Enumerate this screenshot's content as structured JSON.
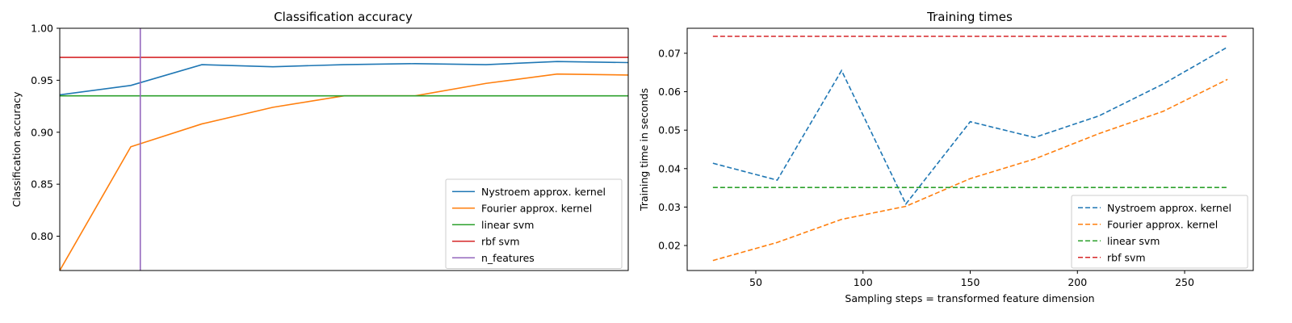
{
  "chart_data": [
    {
      "type": "line",
      "title": "Classification accuracy",
      "xlabel": "",
      "ylabel": "Classification accuracy",
      "xlim": [
        30,
        270
      ],
      "ylim": [
        0.767,
        1.0
      ],
      "yticks": [
        0.8,
        0.85,
        0.9,
        0.95,
        1.0
      ],
      "ytick_labels": [
        "0.80",
        "0.85",
        "0.90",
        "0.95",
        "1.00"
      ],
      "x": [
        30,
        60,
        90,
        120,
        150,
        180,
        210,
        240,
        270
      ],
      "series": [
        {
          "name": "Nystroem approx. kernel",
          "color": "#1f77b4",
          "style": "solid",
          "values": [
            0.936,
            0.945,
            0.965,
            0.963,
            0.965,
            0.966,
            0.965,
            0.968,
            0.967
          ]
        },
        {
          "name": "Fourier approx. kernel",
          "color": "#ff7f0e",
          "style": "solid",
          "values": [
            0.767,
            0.886,
            0.908,
            0.924,
            0.935,
            0.935,
            0.947,
            0.956,
            0.955
          ]
        },
        {
          "name": "linear svm",
          "color": "#2ca02c",
          "style": "solid",
          "hline": 0.935
        },
        {
          "name": "rbf svm",
          "color": "#d62728",
          "style": "solid",
          "hline": 0.972
        },
        {
          "name": "n_features",
          "color": "#9467bd",
          "style": "solid",
          "vline": 64
        }
      ],
      "legend_loc": "lower-right"
    },
    {
      "type": "line",
      "title": "Training times",
      "xlabel": "Sampling steps = transformed feature dimension",
      "ylabel": "Training time in seconds",
      "xlim": [
        18,
        282
      ],
      "ylim": [
        0.0135,
        0.0765
      ],
      "xticks": [
        50,
        100,
        150,
        200,
        250
      ],
      "xtick_labels": [
        "50",
        "100",
        "150",
        "200",
        "250"
      ],
      "yticks": [
        0.02,
        0.03,
        0.04,
        0.05,
        0.06,
        0.07
      ],
      "ytick_labels": [
        "0.02",
        "0.03",
        "0.04",
        "0.05",
        "0.06",
        "0.07"
      ],
      "x": [
        30,
        60,
        90,
        120,
        150,
        180,
        210,
        240,
        270
      ],
      "series": [
        {
          "name": "Nystroem approx. kernel",
          "color": "#1f77b4",
          "style": "dashed",
          "values": [
            0.0414,
            0.037,
            0.0655,
            0.0308,
            0.0522,
            0.0481,
            0.0537,
            0.062,
            0.0716
          ]
        },
        {
          "name": "Fourier approx. kernel",
          "color": "#ff7f0e",
          "style": "dashed",
          "values": [
            0.0161,
            0.0208,
            0.0268,
            0.0302,
            0.0374,
            0.0425,
            0.0491,
            0.0549,
            0.0632
          ]
        },
        {
          "name": "linear svm",
          "color": "#2ca02c",
          "style": "dashed",
          "hline": 0.0351
        },
        {
          "name": "rbf svm",
          "color": "#d62728",
          "style": "dashed",
          "hline": 0.0744
        }
      ],
      "legend_loc": "lower-right"
    }
  ]
}
